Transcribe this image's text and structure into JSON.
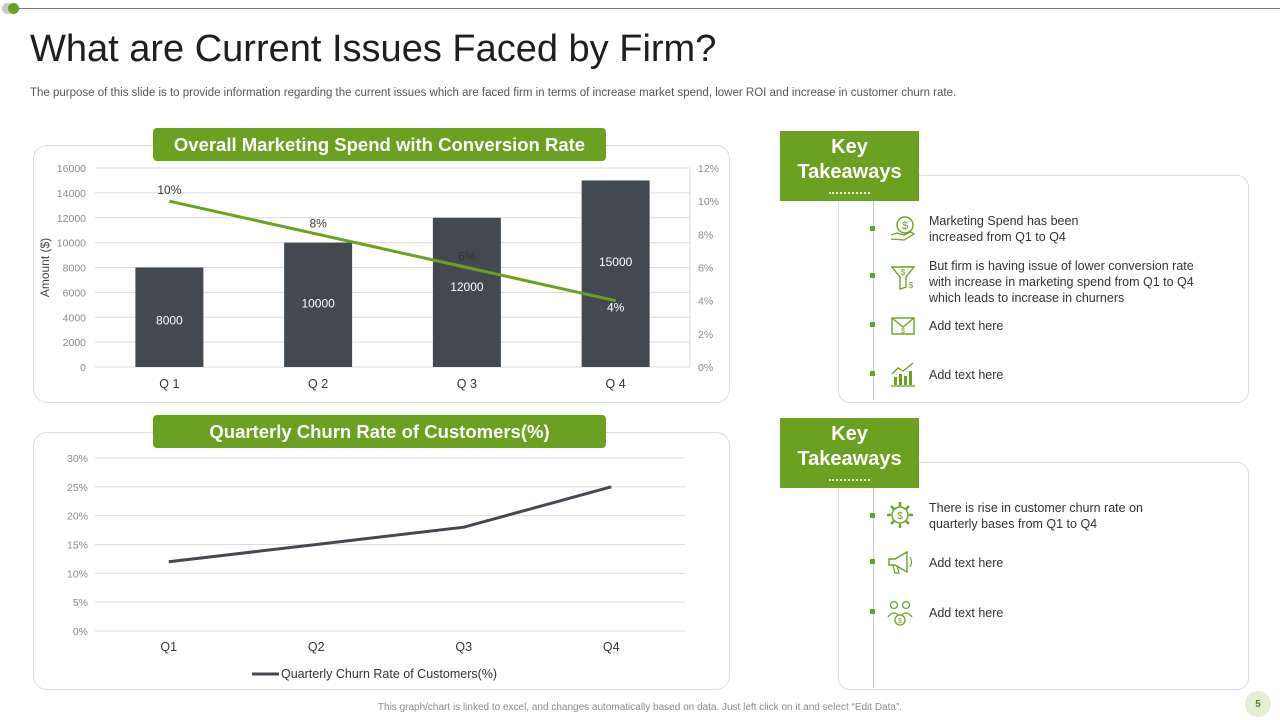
{
  "page": {
    "title": "What are Current Issues Faced by Firm?",
    "subtitle": "The purpose of this slide is to provide information regarding the current issues which are faced firm in terms of increase market spend, lower ROI and increase in customer churn rate.",
    "footer": "This graph/chart is linked to excel, and changes automatically based on data. Just left click on it and select “Edit Data”.",
    "page_number": "5"
  },
  "colors": {
    "accent": "#6aa121",
    "bar": "#434950",
    "churn_line": "#434950",
    "conv_line": "#6aa121"
  },
  "chart1_header": "Overall Marketing Spend with Conversion Rate",
  "chart2_header": "Quarterly Churn Rate of Customers(%)",
  "chart_data": [
    {
      "type": "bar",
      "categories": [
        "Q 1",
        "Q 2",
        "Q 3",
        "Q 4"
      ],
      "ylabel": "Amount ($)",
      "ylim": [
        0,
        16000
      ],
      "y_ticks": [
        "0",
        "2000",
        "4000",
        "6000",
        "8000",
        "10000",
        "12000",
        "14000",
        "16000"
      ],
      "y2_ticks": [
        "0%",
        "2%",
        "4%",
        "6%",
        "8%",
        "10%",
        "12%"
      ],
      "y2lim": [
        0,
        12
      ],
      "grid": true,
      "series": [
        {
          "type": "bar",
          "values": [
            8000,
            10000,
            12000,
            15000
          ],
          "labels": [
            "8000",
            "10000",
            "12000",
            "15000"
          ]
        },
        {
          "type": "line",
          "axis": "secondary",
          "values": [
            10,
            8,
            6,
            4
          ],
          "labels": [
            "10%",
            "8%",
            "6%",
            "4%"
          ]
        }
      ]
    },
    {
      "type": "line",
      "categories": [
        "Q1",
        "Q2",
        "Q3",
        "Q4"
      ],
      "ylim": [
        0,
        30
      ],
      "y_ticks": [
        "0%",
        "5%",
        "10%",
        "15%",
        "20%",
        "25%",
        "30%"
      ],
      "grid": true,
      "legend": "bottom",
      "series": [
        {
          "name": "Quarterly Churn Rate of Customers(%)",
          "values": [
            12,
            15,
            18,
            25
          ]
        }
      ]
    }
  ],
  "takeaways1": {
    "title_line1": "Key",
    "title_line2": "Takeaways",
    "items": [
      {
        "icon": "dollar-hand-icon",
        "line1": "Marketing Spend has been",
        "line2": "increased from Q1 to Q4",
        "line3": ""
      },
      {
        "icon": "funnel-dollar-icon",
        "line1": "But firm is having issue of lower conversion  rate",
        "line2": "with increase in marketing spend from Q1 to Q4",
        "line3": "which leads to increase in churners"
      },
      {
        "icon": "money-envelope-icon",
        "line1": "Add text here",
        "line2": "",
        "line3": ""
      },
      {
        "icon": "growth-chart-icon",
        "line1": "Add text here",
        "line2": "",
        "line3": ""
      }
    ]
  },
  "takeaways2": {
    "title_line1": "Key",
    "title_line2": "Takeaways",
    "items": [
      {
        "icon": "gear-dollar-icon",
        "line1": "There  is rise in customer churn rate on",
        "line2": "quarterly bases from  Q1 to Q4"
      },
      {
        "icon": "megaphone-icon",
        "line1": "Add text here",
        "line2": ""
      },
      {
        "icon": "people-dollar-icon",
        "line1": "Add text here",
        "line2": ""
      }
    ]
  }
}
